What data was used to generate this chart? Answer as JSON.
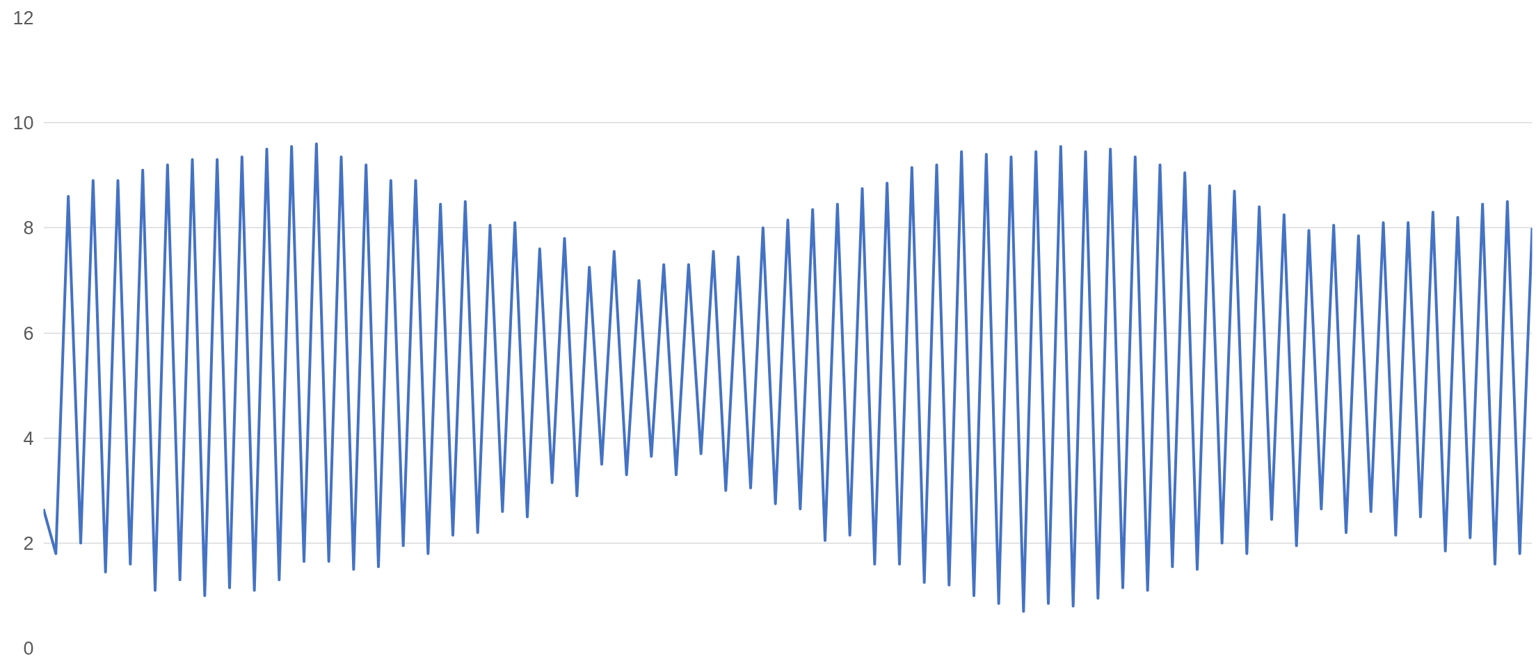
{
  "chart_data": {
    "type": "line",
    "categories": [
      null,
      null,
      null,
      null,
      null,
      null,
      null,
      null,
      null,
      null,
      null,
      null,
      null,
      null,
      null,
      null,
      null,
      null,
      null,
      null,
      null,
      null,
      null,
      null,
      null,
      null,
      null,
      null,
      null,
      null,
      null,
      null,
      null,
      null,
      null,
      null,
      null,
      null,
      null,
      null,
      null,
      null,
      null,
      null,
      null,
      null,
      null,
      null,
      null,
      null,
      null,
      null,
      null,
      null,
      null,
      null,
      null,
      null,
      null,
      null,
      null,
      null,
      null,
      null,
      null,
      null,
      null,
      null,
      null,
      null,
      null,
      null,
      null,
      null,
      null,
      null,
      null,
      null,
      null,
      null,
      null,
      null,
      null,
      null,
      null,
      null,
      null,
      null,
      null,
      null,
      null,
      null,
      null,
      null,
      null,
      null,
      null,
      null,
      null,
      null,
      null,
      null,
      null,
      null,
      null,
      null,
      null,
      null,
      null,
      null,
      null,
      null,
      null,
      null,
      null,
      null,
      null,
      null,
      null,
      null,
      null
    ],
    "series": [
      {
        "color": "#4472c4",
        "values": [
          2.65,
          1.8,
          8.6,
          2.0,
          8.9,
          1.45,
          8.9,
          1.6,
          9.1,
          1.1,
          9.2,
          1.3,
          9.3,
          1.0,
          9.3,
          1.15,
          9.35,
          1.1,
          9.5,
          1.3,
          9.55,
          1.65,
          9.6,
          1.65,
          9.35,
          1.5,
          9.2,
          1.55,
          8.9,
          1.95,
          8.9,
          1.8,
          8.45,
          2.15,
          8.5,
          2.2,
          8.05,
          2.6,
          8.1,
          2.5,
          7.6,
          3.15,
          7.8,
          2.9,
          7.25,
          3.5,
          7.55,
          3.3,
          7.0,
          3.65,
          7.3,
          3.3,
          7.3,
          3.7,
          7.55,
          3.0,
          7.45,
          3.05,
          8.0,
          2.75,
          8.15,
          2.65,
          8.35,
          2.05,
          8.45,
          2.15,
          8.75,
          1.6,
          8.85,
          1.6,
          9.15,
          1.25,
          9.2,
          1.2,
          9.45,
          1.0,
          9.4,
          0.85,
          9.35,
          0.7,
          9.45,
          0.85,
          9.55,
          0.8,
          9.45,
          0.95,
          9.5,
          1.15,
          9.35,
          1.1,
          9.2,
          1.55,
          9.05,
          1.5,
          8.8,
          2.0,
          8.7,
          1.8,
          8.4,
          2.45,
          8.25,
          1.95,
          7.95,
          2.65,
          8.05,
          2.2,
          7.85,
          2.6,
          8.1,
          2.15,
          8.1,
          2.5,
          8.3,
          1.85,
          8.2,
          2.1,
          8.45,
          1.6,
          8.5,
          1.8,
          8.0
        ]
      }
    ],
    "ylim": [
      0,
      12
    ],
    "yticks": [
      0,
      2,
      4,
      6,
      8,
      10,
      12
    ],
    "grid": "y",
    "tick_labels": "y",
    "marker": "none",
    "line_style": "solid"
  }
}
